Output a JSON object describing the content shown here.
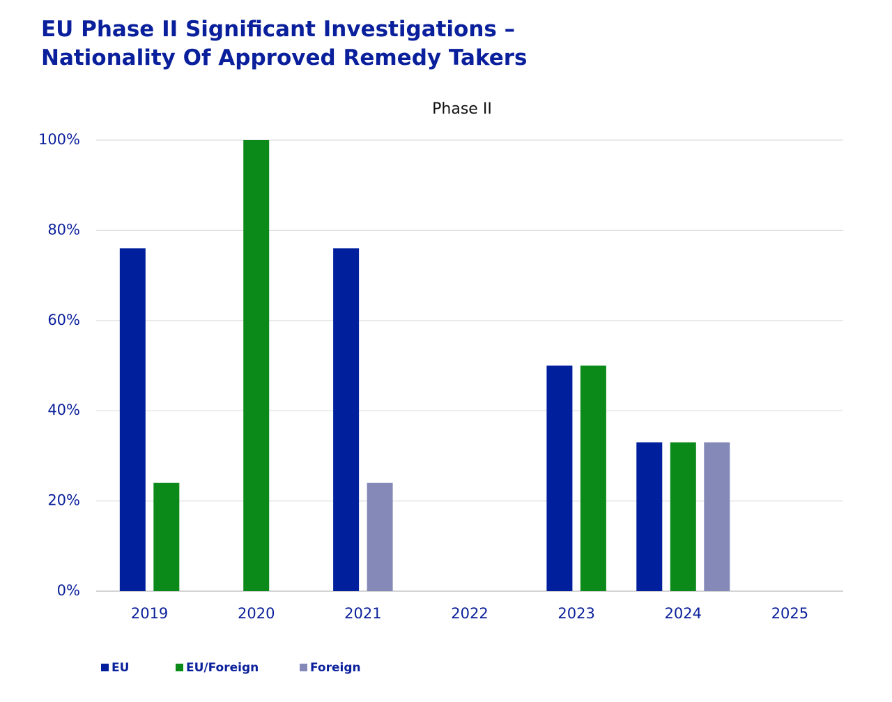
{
  "chart_data": {
    "type": "bar",
    "title": "EU Phase II Significant Investigations – Nationality Of Approved Remedy Takers",
    "subtitle": "Phase II",
    "categories": [
      "2019",
      "2020",
      "2021",
      "2022",
      "2023",
      "2024",
      "2025"
    ],
    "series": [
      {
        "name": "EU",
        "color": "#001f9c",
        "values": [
          76,
          null,
          76,
          null,
          50,
          33,
          null
        ]
      },
      {
        "name": "EU/Foreign",
        "color": "#0b8a1a",
        "values": [
          24,
          100,
          null,
          null,
          50,
          33,
          null
        ]
      },
      {
        "name": "Foreign",
        "color": "#8489b8",
        "values": [
          null,
          null,
          24,
          null,
          null,
          33,
          null
        ]
      }
    ],
    "ylim": [
      0,
      100
    ],
    "yticks": [
      {
        "value": 0,
        "label": "0%"
      },
      {
        "value": 20,
        "label": "20%"
      },
      {
        "value": 40,
        "label": "40%"
      },
      {
        "value": 60,
        "label": "60%"
      },
      {
        "value": 80,
        "label": "80%"
      },
      {
        "value": 100,
        "label": "100%"
      }
    ],
    "grid": true,
    "legend": "bottom-left"
  }
}
